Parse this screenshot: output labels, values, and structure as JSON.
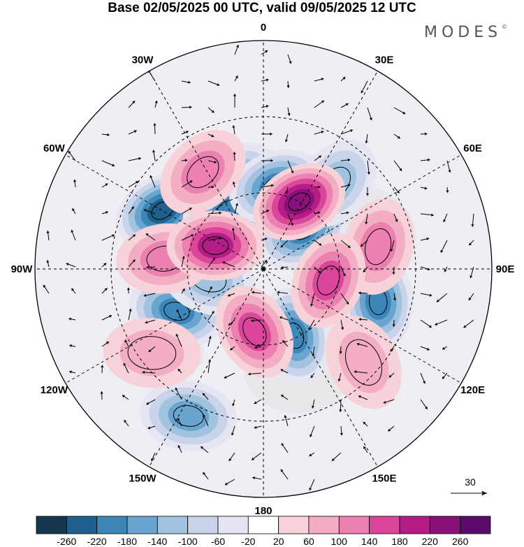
{
  "title": "Base 02/05/2025 00 UTC, valid 09/05/2025 12 UTC",
  "brand": "MODES",
  "brand_mark": "©",
  "longitude_labels": [
    {
      "text": "0",
      "lon": 180
    },
    {
      "text": "30E",
      "lon": 150
    },
    {
      "text": "60E",
      "lon": 120
    },
    {
      "text": "90E",
      "lon": 90
    },
    {
      "text": "120E",
      "lon": 60
    },
    {
      "text": "150E",
      "lon": 30
    },
    {
      "text": "180",
      "lon": 0
    },
    {
      "text": "150W",
      "lon": -30
    },
    {
      "text": "120W",
      "lon": -60
    },
    {
      "text": "90W",
      "lon": -90
    },
    {
      "text": "60W",
      "lon": -120
    },
    {
      "text": "30W",
      "lon": -150
    }
  ],
  "vector_reference": {
    "value": "30"
  },
  "colorbar": {
    "ticks": [
      "-260",
      "-220",
      "-180",
      "-140",
      "-100",
      "-60",
      "-20",
      "20",
      "60",
      "100",
      "140",
      "180",
      "220",
      "260"
    ],
    "colors": [
      "#16384f",
      "#1f5f8b",
      "#3d86b8",
      "#6aa5cf",
      "#a2c3e0",
      "#c9d4ea",
      "#e6e6f2",
      "#ffffff",
      "#f7d3d9",
      "#f3aec4",
      "#ec80b1",
      "#d9469a",
      "#b41d87",
      "#8a1179",
      "#5a0c6b"
    ]
  },
  "anomaly_cells": [
    {
      "name": "neg-north-atlantic",
      "lat": 55,
      "lon": -162,
      "value": -190
    },
    {
      "name": "neg-labrador",
      "lat": 44,
      "lon": -120,
      "value": -240
    },
    {
      "name": "neg-greenland",
      "lat": 63,
      "lon": -150,
      "value": -200
    },
    {
      "name": "neg-svalbard",
      "lat": 57,
      "lon": 171,
      "value": -230
    },
    {
      "name": "neg-west-siberia",
      "lat": 68,
      "lon": 135,
      "value": -220
    },
    {
      "name": "neg-kara",
      "lat": 46,
      "lon": 140,
      "value": -140
    },
    {
      "name": "neg-central-siberia",
      "lat": 43,
      "lon": 74,
      "value": -210
    },
    {
      "name": "neg-beaufort",
      "lat": 61,
      "lon": 25,
      "value": -230
    },
    {
      "name": "neg-canada",
      "lat": 52,
      "lon": -64,
      "value": -200
    },
    {
      "name": "neg-hudson",
      "lat": 68,
      "lon": -80,
      "value": -140
    },
    {
      "name": "neg-gulf-of-alaska",
      "lat": 25,
      "lon": -27,
      "value": -160
    },
    {
      "name": "pos-iceland",
      "lat": 45,
      "lon": -148,
      "value": 120
    },
    {
      "name": "pos-barents",
      "lat": 60,
      "lon": 152,
      "value": 260
    },
    {
      "name": "pos-urals",
      "lat": 44,
      "lon": 101,
      "value": 150
    },
    {
      "name": "pos-laptev",
      "lat": 64,
      "lon": 80,
      "value": 180
    },
    {
      "name": "pos-east-siberia",
      "lat": 36,
      "lon": 47,
      "value": 110
    },
    {
      "name": "pos-chukchi",
      "lat": 65,
      "lon": -8,
      "value": 160
    },
    {
      "name": "pos-pacific",
      "lat": 35,
      "lon": -53,
      "value": 110
    },
    {
      "name": "pos-hudson-bay",
      "lat": 51,
      "lon": -96,
      "value": 140
    },
    {
      "name": "pos-baffin",
      "lat": 69,
      "lon": -116,
      "value": 200
    }
  ]
}
